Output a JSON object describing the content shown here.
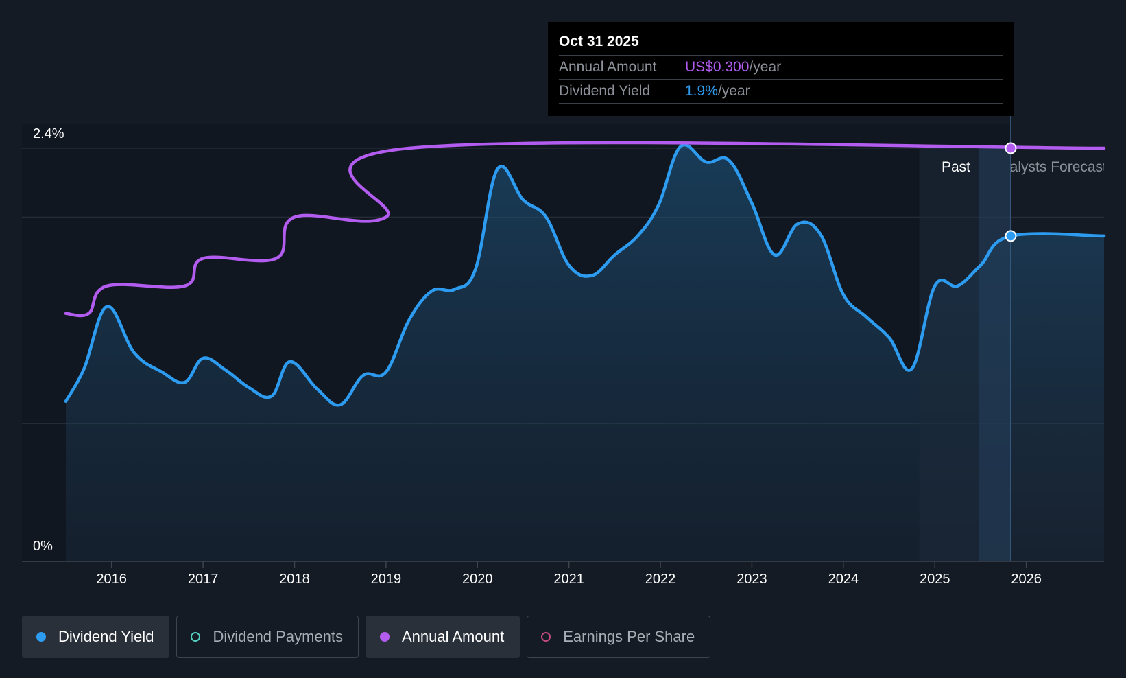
{
  "tooltip": {
    "date": "Oct 31 2025",
    "annual_label": "Annual Amount",
    "annual_value": "US$0.300",
    "annual_unit": "/year",
    "yield_label": "Dividend Yield",
    "yield_value": "1.9%",
    "yield_unit": "/year"
  },
  "legend": [
    {
      "label": "Dividend Yield",
      "active": true,
      "marker": "filled",
      "color": "#2d9cf0"
    },
    {
      "label": "Dividend Payments",
      "active": false,
      "marker": "ring",
      "color": "#55d0c0"
    },
    {
      "label": "Annual Amount",
      "active": true,
      "marker": "filled",
      "color": "#b35cf0"
    },
    {
      "label": "Earnings Per Share",
      "active": false,
      "marker": "ring",
      "color": "#c04a80"
    }
  ],
  "chart_data": {
    "type": "line",
    "xlim": [
      2015.5,
      2026.85
    ],
    "ylim": [
      0,
      2.4
    ],
    "y_tick_labels": [
      "2.4%",
      "0%"
    ],
    "x_ticks": [
      2016,
      2017,
      2018,
      2019,
      2020,
      2021,
      2022,
      2023,
      2024,
      2025,
      2026
    ],
    "past_label": "Past",
    "forecast_label": "Analysts Forecast",
    "past_forecast_boundary": 2025.83,
    "series": [
      {
        "name": "Dividend Yield",
        "color": "#2d9cf0",
        "area": true,
        "points": [
          [
            2015.5,
            0.93
          ],
          [
            2015.7,
            1.12
          ],
          [
            2015.95,
            1.48
          ],
          [
            2016.25,
            1.21
          ],
          [
            2016.55,
            1.1
          ],
          [
            2016.8,
            1.04
          ],
          [
            2017.0,
            1.18
          ],
          [
            2017.25,
            1.11
          ],
          [
            2017.5,
            1.01
          ],
          [
            2017.75,
            0.96
          ],
          [
            2017.95,
            1.16
          ],
          [
            2018.25,
            1.0
          ],
          [
            2018.5,
            0.91
          ],
          [
            2018.75,
            1.08
          ],
          [
            2019.0,
            1.1
          ],
          [
            2019.25,
            1.4
          ],
          [
            2019.5,
            1.57
          ],
          [
            2019.75,
            1.58
          ],
          [
            2019.98,
            1.7
          ],
          [
            2020.22,
            2.28
          ],
          [
            2020.5,
            2.1
          ],
          [
            2020.75,
            2.0
          ],
          [
            2021.0,
            1.72
          ],
          [
            2021.25,
            1.66
          ],
          [
            2021.5,
            1.78
          ],
          [
            2021.75,
            1.89
          ],
          [
            2021.98,
            2.07
          ],
          [
            2022.22,
            2.41
          ],
          [
            2022.5,
            2.32
          ],
          [
            2022.75,
            2.33
          ],
          [
            2023.0,
            2.08
          ],
          [
            2023.25,
            1.78
          ],
          [
            2023.5,
            1.96
          ],
          [
            2023.75,
            1.9
          ],
          [
            2024.0,
            1.55
          ],
          [
            2024.25,
            1.42
          ],
          [
            2024.5,
            1.3
          ],
          [
            2024.75,
            1.12
          ],
          [
            2025.0,
            1.6
          ],
          [
            2025.25,
            1.6
          ],
          [
            2025.5,
            1.72
          ],
          [
            2025.83,
            1.89
          ],
          [
            2026.85,
            1.89
          ]
        ]
      },
      {
        "name": "Annual Amount",
        "color": "#b35cf0",
        "area": false,
        "points": [
          [
            2015.5,
            1.44
          ],
          [
            2015.75,
            1.44
          ],
          [
            2015.95,
            1.6
          ],
          [
            2016.8,
            1.6
          ],
          [
            2017.0,
            1.76
          ],
          [
            2017.8,
            1.76
          ],
          [
            2018.0,
            2.0
          ],
          [
            2019.0,
            2.0
          ],
          [
            2019.25,
            2.4
          ],
          [
            2026.85,
            2.4
          ]
        ]
      }
    ],
    "markers": [
      {
        "series": "Annual Amount",
        "x": 2025.83,
        "y": 2.4
      },
      {
        "series": "Dividend Yield",
        "x": 2025.83,
        "y": 1.89
      }
    ]
  }
}
